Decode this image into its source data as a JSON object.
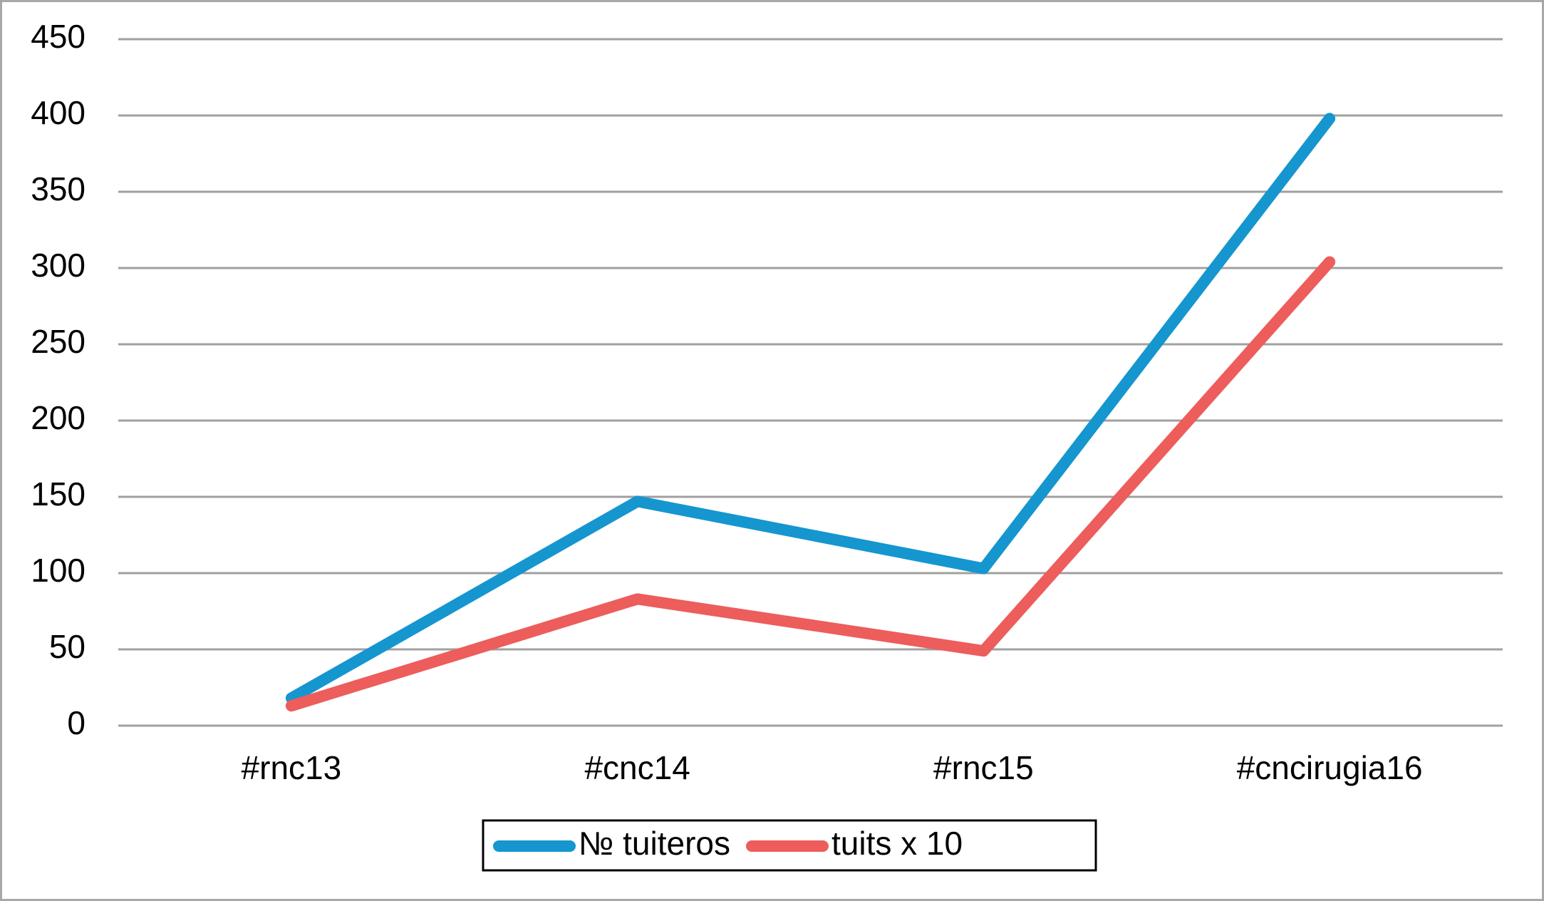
{
  "chart_data": {
    "type": "line",
    "categories": [
      "#rnc13",
      "#cnc14",
      "#rnc15",
      "#cncirugia16"
    ],
    "series": [
      {
        "name": "№ tuiteros",
        "color": "#1596cf",
        "values": [
          18,
          147,
          103,
          398
        ]
      },
      {
        "name": "tuits x 10",
        "color": "#ec5d5b",
        "values": [
          13,
          83,
          49,
          304
        ]
      }
    ],
    "ylim": [
      0,
      450
    ],
    "yticks": [
      0,
      50,
      100,
      150,
      200,
      250,
      300,
      350,
      400,
      450
    ],
    "grid": true,
    "legend": "bottom"
  }
}
